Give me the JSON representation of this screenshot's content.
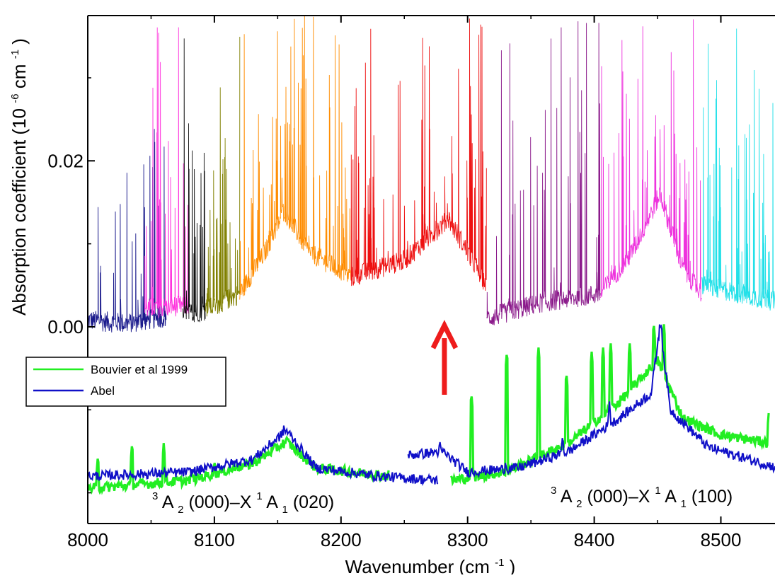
{
  "chart_data": {
    "type": "line",
    "xlabel": "Wavenumber",
    "xlabel_unit": "(cm",
    "xlabel_unit_exp": "-1",
    "xlabel_unit_close": ")",
    "ylabel": "Absorption coefficient",
    "ylabel_unit": "(10",
    "ylabel_unit_exp": "-6",
    "ylabel_unit_mid": " cm",
    "ylabel_unit_exp2": "-1",
    "ylabel_unit_close": ")",
    "xlim": [
      8000,
      8545
    ],
    "ylim": [
      -0.0237,
      0.0375
    ],
    "x_ticks": [
      8000,
      8100,
      8200,
      8300,
      8400,
      8500
    ],
    "x_tick_labels": [
      "8000",
      "8100",
      "8200",
      "8300",
      "8400",
      "8500"
    ],
    "y_ticks": [
      0.0,
      0.02
    ],
    "y_tick_labels": [
      "0.00",
      "0.02"
    ],
    "y_minor_ticks": [
      -0.02,
      -0.01,
      0.01,
      0.03
    ],
    "legend": {
      "position": "left",
      "entries": [
        {
          "name": "Bouvier et al 1999",
          "color": "#22ee22"
        },
        {
          "name": "Abel",
          "color": "#1010c8"
        }
      ]
    },
    "upper_segments": [
      {
        "range": [
          8000,
          8062
        ],
        "color": "#1a1a8c",
        "baseline": 0.0006,
        "env": [
          [
            8000,
            0.0008
          ],
          [
            8030,
            0.0004
          ],
          [
            8062,
            0.0012
          ]
        ],
        "line_density": 0.9,
        "line_max": 0.024
      },
      {
        "range": [
          8045,
          8080
        ],
        "color": "#ff33dd",
        "baseline": 0.002,
        "env": [
          [
            8045,
            0.0022
          ],
          [
            8062,
            0.0024
          ],
          [
            8080,
            0.0026
          ]
        ],
        "line_density": 1.0,
        "line_max": 0.0375
      },
      {
        "range": [
          8075,
          8093
        ],
        "color": "#111111",
        "baseline": 0.0015,
        "env": [
          [
            8075,
            0.0015
          ],
          [
            8093,
            0.002
          ]
        ],
        "line_density": 1.5,
        "line_max": 0.0375
      },
      {
        "range": [
          8093,
          8120
        ],
        "color": "#808000",
        "baseline": 0.003,
        "env": [
          [
            8093,
            0.002
          ],
          [
            8120,
            0.004
          ]
        ],
        "line_density": 2.0,
        "line_max": 0.0375
      },
      {
        "range": [
          8120,
          8208
        ],
        "color": "#ff8c00",
        "baseline": 0.005,
        "env": [
          [
            8120,
            0.004
          ],
          [
            8140,
            0.009
          ],
          [
            8155,
            0.014
          ],
          [
            8175,
            0.009
          ],
          [
            8208,
            0.006
          ]
        ],
        "line_density": 1.2,
        "line_max": 0.0375
      },
      {
        "range": [
          8208,
          8315
        ],
        "color": "#ee1010",
        "baseline": 0.006,
        "env": [
          [
            8208,
            0.006
          ],
          [
            8250,
            0.008
          ],
          [
            8285,
            0.013
          ],
          [
            8315,
            0.005
          ]
        ],
        "line_density": 1.1,
        "line_max": 0.0375
      },
      {
        "range": [
          8315,
          8405
        ],
        "color": "#8b1a8b",
        "baseline": 0.003,
        "env": [
          [
            8315,
            0.001
          ],
          [
            8360,
            0.003
          ],
          [
            8405,
            0.004
          ]
        ],
        "line_density": 0.9,
        "line_max": 0.0375
      },
      {
        "range": [
          8405,
          8485
        ],
        "color": "#ee33dd",
        "baseline": 0.007,
        "env": [
          [
            8405,
            0.004
          ],
          [
            8430,
            0.009
          ],
          [
            8452,
            0.016
          ],
          [
            8470,
            0.007
          ],
          [
            8485,
            0.004
          ]
        ],
        "line_density": 1.0,
        "line_max": 0.0375
      },
      {
        "range": [
          8485,
          8545
        ],
        "color": "#22e0e8",
        "baseline": 0.004,
        "env": [
          [
            8485,
            0.005
          ],
          [
            8545,
            0.003
          ]
        ],
        "line_density": 1.4,
        "line_max": 0.0375
      }
    ],
    "series": [
      {
        "name": "Bouvier et al 1999",
        "color": "#22ee22",
        "segments": [
          {
            "x_range": [
              8000,
              8238
            ],
            "env": [
              [
                8000,
                -0.0195
              ],
              [
                8080,
                -0.0185
              ],
              [
                8130,
                -0.0165
              ],
              [
                8157,
                -0.0138
              ],
              [
                8180,
                -0.017
              ],
              [
                8238,
                -0.018
              ]
            ],
            "spikes": [
              [
                8008,
                -0.0155
              ],
              [
                8035,
                -0.014
              ],
              [
                8060,
                -0.014
              ],
              [
                8082,
                -0.017
              ],
              [
                8100,
                -0.016
              ],
              [
                8118,
                -0.016
              ],
              [
                8145,
                -0.0155
              ],
              [
                8238,
                -0.0165
              ]
            ]
          },
          {
            "x_range": [
              8287,
              8538
            ],
            "env": [
              [
                8287,
                -0.0185
              ],
              [
                8330,
                -0.0175
              ],
              [
                8380,
                -0.014
              ],
              [
                8420,
                -0.009
              ],
              [
                8450,
                -0.004
              ],
              [
                8470,
                -0.011
              ],
              [
                8500,
                -0.013
              ],
              [
                8538,
                -0.014
              ]
            ],
            "spikes": [
              [
                8303,
                -0.008
              ],
              [
                8331,
                -0.003
              ],
              [
                8356,
                -0.0025
              ],
              [
                8378,
                -0.0055
              ],
              [
                8398,
                -0.003
              ],
              [
                8407,
                -0.0025
              ],
              [
                8413,
                -0.002
              ],
              [
                8428,
                -0.002
              ],
              [
                8447,
                0.0005
              ],
              [
                8455,
                0.0003
              ],
              [
                8538,
                -0.01
              ]
            ]
          }
        ]
      },
      {
        "name": "Abel",
        "color": "#1010c8",
        "segments": [
          {
            "x_range": [
              8000,
              8277
            ],
            "env": [
              [
                8000,
                -0.018
              ],
              [
                8080,
                -0.0175
              ],
              [
                8130,
                -0.016
              ],
              [
                8157,
                -0.0125
              ],
              [
                8180,
                -0.017
              ],
              [
                8230,
                -0.018
              ],
              [
                8277,
                -0.0185
              ]
            ],
            "spikes": [
              [
                8155,
                -0.0115
              ],
              [
                8094,
                -0.0165
              ],
              [
                8122,
                -0.016
              ]
            ]
          },
          {
            "x_range": [
              8253,
              8545
            ],
            "env": [
              [
                8253,
                -0.0155
              ],
              [
                8280,
                -0.015
              ],
              [
                8300,
                -0.0175
              ],
              [
                8340,
                -0.017
              ],
              [
                8380,
                -0.015
              ],
              [
                8420,
                -0.011
              ],
              [
                8445,
                -0.008
              ],
              [
                8452,
                0.0002
              ],
              [
                8460,
                -0.01
              ],
              [
                8490,
                -0.0145
              ],
              [
                8545,
                -0.017
              ]
            ],
            "spikes": [
              [
                8278,
                -0.0135
              ],
              [
                8330,
                -0.016
              ],
              [
                8375,
                -0.013
              ],
              [
                8412,
                -0.009
              ],
              [
                8453,
                0.0005
              ]
            ]
          }
        ]
      }
    ],
    "annotations": [
      {
        "text": "A",
        "sub": "2",
        "pre_sup": "3",
        "rest": "(000)–X",
        "sup2": "1",
        "A2": "A",
        "sub2": "1",
        "tail": "(020)",
        "position": "bottom-left"
      },
      {
        "text": "A",
        "sub": "2",
        "pre_sup": "3",
        "rest": "(000)–X",
        "sup2": "1",
        "A2": "A",
        "sub2": "1",
        "tail": "(100)",
        "position": "bottom-right"
      }
    ],
    "arrow": {
      "color": "#ee1c1c",
      "x": 8280,
      "direction": "up"
    }
  }
}
